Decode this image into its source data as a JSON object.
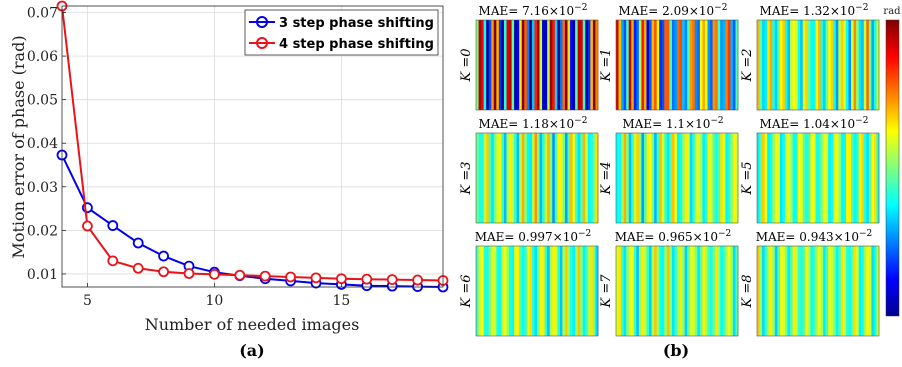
{
  "chart_data": [
    {
      "type": "line",
      "subfigure_label": "(a)",
      "title": "",
      "xlabel": "Number of needed images",
      "ylabel": "Motion error of phase (rad)",
      "xlim": [
        4,
        19
      ],
      "ylim": [
        0.007,
        0.0715
      ],
      "xticks": [
        5,
        10,
        15
      ],
      "yticks": [
        0.01,
        0.02,
        0.03,
        0.04,
        0.05,
        0.06,
        0.07
      ],
      "ytick_labels": [
        "0.01",
        "0.02",
        "0.03",
        "0.04",
        "0.05",
        "0.06",
        "0.07"
      ],
      "grid": true,
      "legend_position": "top-right",
      "series": [
        {
          "name": "3 step phase shifting",
          "color": "#0000ee",
          "marker": "circle",
          "x": [
            4,
            5,
            6,
            7,
            8,
            9,
            10,
            11,
            12,
            13,
            14,
            15,
            16,
            17,
            18,
            19
          ],
          "values": [
            0.0373,
            0.0252,
            0.0211,
            0.0171,
            0.0141,
            0.0118,
            0.0104,
            0.0096,
            0.0089,
            0.0084,
            0.0079,
            0.0076,
            0.0073,
            0.0072,
            0.0071,
            0.007
          ]
        },
        {
          "name": "4 step phase shifting",
          "color": "#e8141a",
          "marker": "circle",
          "x": [
            4,
            5,
            6,
            7,
            8,
            9,
            10,
            11,
            12,
            13,
            14,
            15,
            16,
            17,
            18,
            19
          ],
          "values": [
            0.0715,
            0.021,
            0.013,
            0.0113,
            0.0105,
            0.0101,
            0.0099,
            0.0097,
            0.0095,
            0.0093,
            0.0091,
            0.0089,
            0.0088,
            0.0087,
            0.0086,
            0.0085
          ]
        }
      ]
    },
    {
      "type": "heatmap",
      "subfigure_label": "(b)",
      "colorbar_unit": "rad",
      "panels": [
        {
          "k_label": "K =0",
          "mae": "MAE= 7.16×10",
          "exponent": "−2",
          "amplitude": 1.0
        },
        {
          "k_label": "K =1",
          "mae": "MAE= 2.09×10",
          "exponent": "−2",
          "amplitude": 0.34
        },
        {
          "k_label": "K =2",
          "mae": "MAE= 1.32×10",
          "exponent": "−2",
          "amplitude": 0.2
        },
        {
          "k_label": "K =3",
          "mae": "MAE= 1.18×10",
          "exponent": "−2",
          "amplitude": 0.17
        },
        {
          "k_label": "K =4",
          "mae": "MAE= 1.1×10",
          "exponent": "−2",
          "amplitude": 0.16
        },
        {
          "k_label": "K =5",
          "mae": "MAE= 1.04×10",
          "exponent": "−2",
          "amplitude": 0.15
        },
        {
          "k_label": "K =6",
          "mae": "MAE= 0.997×10",
          "exponent": "−2",
          "amplitude": 0.145
        },
        {
          "k_label": "K =7",
          "mae": "MAE= 0.965×10",
          "exponent": "−2",
          "amplitude": 0.14
        },
        {
          "k_label": "K =8",
          "mae": "MAE= 0.943×10",
          "exponent": "−2",
          "amplitude": 0.135
        }
      ]
    }
  ]
}
